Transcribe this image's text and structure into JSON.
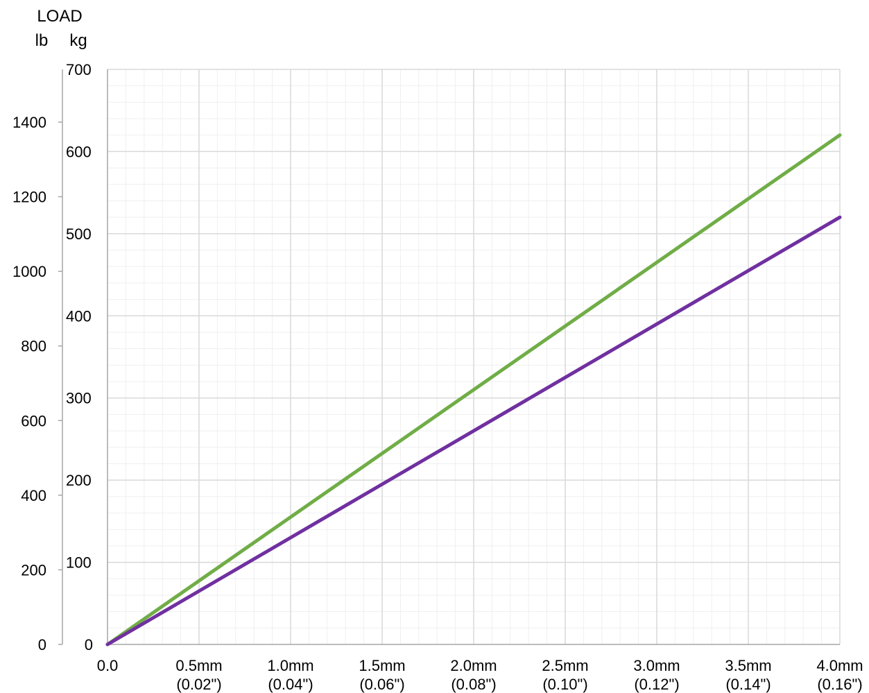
{
  "chart_data": {
    "type": "line",
    "title": "",
    "header": {
      "line1": "LOAD",
      "left_unit": "lb",
      "right_unit": "kg"
    },
    "x_ticks": [
      {
        "value": 0.0,
        "label1": "0.0",
        "label2": ""
      },
      {
        "value": 0.5,
        "label1": "0.5mm",
        "label2": "(0.02\")"
      },
      {
        "value": 1.0,
        "label1": "1.0mm",
        "label2": "(0.04\")"
      },
      {
        "value": 1.5,
        "label1": "1.5mm",
        "label2": "(0.06\")"
      },
      {
        "value": 2.0,
        "label1": "2.0mm",
        "label2": "(0.08\")"
      },
      {
        "value": 2.5,
        "label1": "2.5mm",
        "label2": "(0.10\")"
      },
      {
        "value": 3.0,
        "label1": "3.0mm",
        "label2": "(0.12\")"
      },
      {
        "value": 3.5,
        "label1": "3.5mm",
        "label2": "(0.14\")"
      },
      {
        "value": 4.0,
        "label1": "4.0mm",
        "label2": "(0.16\")"
      }
    ],
    "xlim": [
      0,
      4.0
    ],
    "y_kg": {
      "lim": [
        0,
        700
      ],
      "ticks": [
        0,
        100,
        200,
        300,
        400,
        500,
        600,
        700
      ]
    },
    "y_lb": {
      "ticks": [
        0,
        200,
        400,
        600,
        800,
        1000,
        1200,
        1400
      ]
    },
    "grid": true,
    "series": [
      {
        "color": "#70ad47",
        "points": [
          [
            0,
            0
          ],
          [
            4.0,
            620
          ]
        ]
      },
      {
        "color": "#7030a0",
        "points": [
          [
            0,
            0
          ],
          [
            4.0,
            520
          ]
        ]
      }
    ],
    "colors": {
      "grid_major": "#d9d9d9",
      "grid_minor": "#efefef",
      "axis": "#a6a6a6",
      "text": "#000000"
    }
  }
}
